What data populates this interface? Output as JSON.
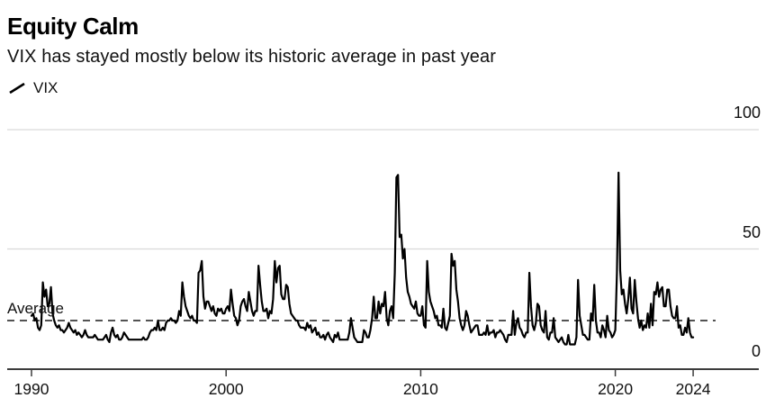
{
  "header": {
    "title": "Equity Calm",
    "subtitle": "VIX has stayed mostly below its historic average in past year"
  },
  "legend": {
    "label": "VIX",
    "marker": "diagonal-line",
    "color": "#000000"
  },
  "colors": {
    "background": "#ffffff",
    "series_line": "#000000",
    "grid_line": "#d9d9d9",
    "axis_line": "#3c3c3c",
    "text": "#111111",
    "average_line": "#1a1a1a"
  },
  "chart_data": {
    "type": "line",
    "title": "Equity Calm",
    "subtitle": "VIX has stayed mostly below its historic average in past year",
    "xlabel": "",
    "ylabel": "",
    "y_axis_position": "right",
    "grid": "horizontal",
    "ylim": [
      0,
      105
    ],
    "x_range_years": [
      1990.0,
      2024.08
    ],
    "x_ticks": [
      {
        "label": "1990",
        "year": 1990
      },
      {
        "label": "2000",
        "year": 2000
      },
      {
        "label": "2010",
        "year": 2010
      },
      {
        "label": "2020",
        "year": 2020
      },
      {
        "label": "2024",
        "year": 2024
      }
    ],
    "y_ticks": [
      {
        "label": "0",
        "value": 0
      },
      {
        "label": "50",
        "value": 50
      },
      {
        "label": "100",
        "value": 100
      }
    ],
    "average_line": {
      "label": "Average",
      "value": 20,
      "style": "dashed"
    },
    "series": [
      {
        "name": "VIX",
        "color": "#000000",
        "x_start_year": 1990,
        "x_interval_months": 1,
        "values": [
          22,
          23,
          20,
          21,
          17,
          16,
          18,
          36,
          30,
          33,
          26,
          27,
          34,
          23,
          20,
          18,
          17,
          18,
          16,
          16,
          15,
          16,
          17,
          19,
          17,
          16,
          15,
          16,
          14,
          15,
          14,
          13,
          14,
          16,
          14,
          13,
          13,
          13,
          13,
          14,
          13,
          12,
          12,
          12,
          12,
          13,
          14,
          12,
          11,
          15,
          17,
          14,
          13,
          14,
          12,
          12,
          13,
          15,
          14,
          13,
          12,
          12,
          12,
          12,
          12,
          12,
          12,
          12,
          12,
          13,
          12,
          12,
          13,
          15,
          16,
          16,
          17,
          16,
          20,
          16,
          16,
          17,
          16,
          19,
          20,
          20,
          21,
          20,
          20,
          19,
          20,
          24,
          22,
          36,
          30,
          26,
          24,
          22,
          21,
          22,
          20,
          20,
          19,
          40,
          41,
          45,
          30,
          25,
          28,
          28,
          26,
          24,
          26,
          23,
          22,
          25,
          24,
          25,
          23,
          23,
          25,
          26,
          24,
          33,
          27,
          22,
          21,
          18,
          20,
          26,
          28,
          29,
          26,
          24,
          32,
          28,
          24,
          22,
          24,
          24,
          43,
          35,
          28,
          24,
          24,
          25,
          21,
          24,
          23,
          29,
          45,
          36,
          42,
          43,
          31,
          29,
          29,
          35,
          34,
          27,
          23,
          22,
          21,
          20,
          20,
          18,
          17,
          17,
          17,
          16,
          19,
          17,
          18,
          15,
          16,
          17,
          14,
          15,
          13,
          13,
          14,
          12,
          14,
          15,
          13,
          12,
          11,
          14,
          13,
          15,
          12,
          12,
          12,
          12,
          12,
          12,
          15,
          21,
          17,
          13,
          12,
          11,
          11,
          11,
          11,
          16,
          15,
          13,
          13,
          16,
          21,
          30,
          21,
          21,
          28,
          23,
          27,
          26,
          32,
          21,
          18,
          24,
          26,
          21,
          40,
          80,
          81,
          55,
          56,
          46,
          50,
          38,
          32,
          30,
          27,
          26,
          25,
          28,
          23,
          22,
          22,
          26,
          18,
          17,
          45,
          32,
          28,
          26,
          24,
          21,
          22,
          18,
          18,
          17,
          25,
          17,
          16,
          19,
          22,
          48,
          43,
          45,
          33,
          28,
          21,
          18,
          16,
          18,
          24,
          22,
          18,
          15,
          16,
          17,
          18,
          18,
          14,
          14,
          14,
          15,
          14,
          18,
          14,
          15,
          15,
          16,
          13,
          15,
          15,
          16,
          15,
          14,
          12,
          11,
          14,
          14,
          14,
          24,
          14,
          19,
          21,
          17,
          16,
          14,
          13,
          15,
          15,
          40,
          26,
          18,
          16,
          19,
          27,
          26,
          18,
          16,
          15,
          24,
          13,
          12,
          15,
          15,
          21,
          13,
          12,
          11,
          12,
          13,
          11,
          10,
          10,
          14,
          10,
          10,
          10,
          10,
          13,
          37,
          22,
          18,
          14,
          14,
          13,
          12,
          12,
          23,
          20,
          35,
          20,
          15,
          15,
          13,
          18,
          16,
          13,
          22,
          16,
          15,
          13,
          14,
          16,
          40,
          82,
          41,
          31,
          33,
          27,
          23,
          29,
          38,
          25,
          23,
          37,
          28,
          21,
          17,
          20,
          16,
          18,
          17,
          23,
          17,
          27,
          18,
          32,
          31,
          36,
          30,
          33,
          34,
          26,
          26,
          33,
          33,
          26,
          22,
          21,
          21,
          26,
          17,
          18,
          14,
          14,
          17,
          15,
          21,
          15,
          13,
          13
        ]
      }
    ]
  }
}
